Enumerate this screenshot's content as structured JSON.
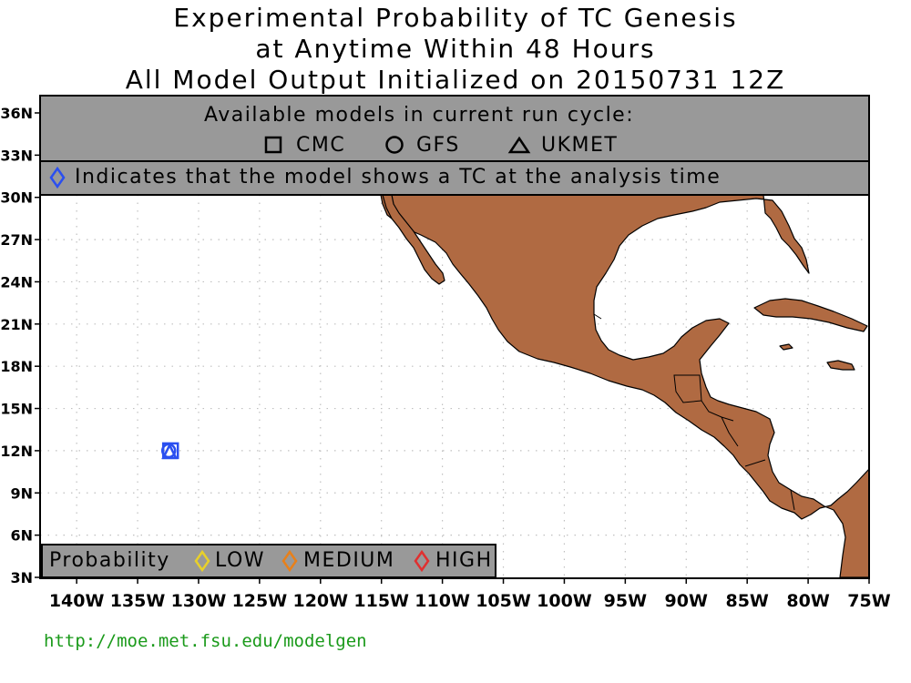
{
  "title": {
    "line1": "Experimental Probability of TC Genesis",
    "line2": "at Anytime Within 48 Hours",
    "line3": "All Model Output Initialized on 20150731 12Z"
  },
  "models_header": {
    "heading": "Available models in current run cycle:",
    "models": [
      {
        "name": "CMC",
        "symbol": "square"
      },
      {
        "name": "GFS",
        "symbol": "circle"
      },
      {
        "name": "UKMET",
        "symbol": "triangle"
      }
    ]
  },
  "analysis_note": "Indicates that the model shows a TC at the analysis time",
  "legend": {
    "label": "Probability",
    "levels": [
      {
        "name": "LOW",
        "color": "#e8d02a"
      },
      {
        "name": "MEDIUM",
        "color": "#e8801a"
      },
      {
        "name": "HIGH",
        "color": "#e03030"
      }
    ]
  },
  "colors": {
    "land": "#b06a42",
    "analysis_marker": "#2a4ff0",
    "header_gray": "#999999",
    "url": "#1a9a1a"
  },
  "axes": {
    "lat_labels": [
      "36N",
      "33N",
      "30N",
      "27N",
      "24N",
      "21N",
      "18N",
      "15N",
      "12N",
      "9N",
      "6N",
      "3N"
    ],
    "lat_values": [
      36,
      33,
      30,
      27,
      24,
      21,
      18,
      15,
      12,
      9,
      6,
      3
    ],
    "lon_labels": [
      "140W",
      "135W",
      "130W",
      "125W",
      "120W",
      "115W",
      "110W",
      "105W",
      "100W",
      "95W",
      "90W",
      "85W",
      "80W",
      "75W"
    ],
    "lon_values": [
      -140,
      -135,
      -130,
      -125,
      -120,
      -115,
      -110,
      -105,
      -100,
      -95,
      -90,
      -85,
      -80,
      -75
    ]
  },
  "analysis_points": [
    {
      "lon": -132.3,
      "lat": 12.0,
      "models": [
        "CMC",
        "GFS",
        "UKMET"
      ]
    }
  ],
  "url": "http://moe.met.fsu.edu/modelgen"
}
